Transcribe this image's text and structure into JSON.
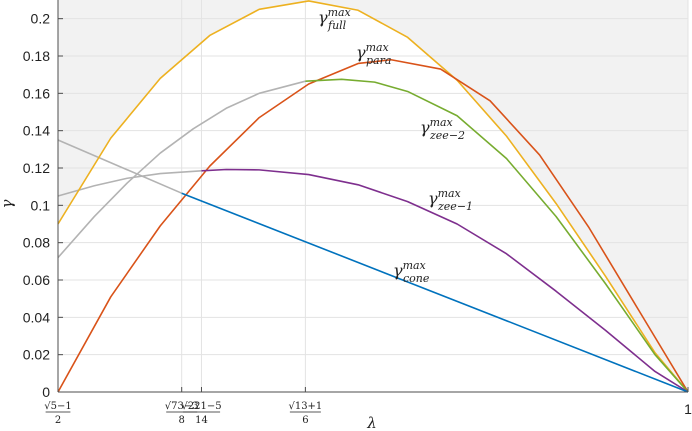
{
  "chart_data": {
    "type": "line",
    "xlabel": "λ",
    "ylabel": "γ",
    "xlim": [
      0.618,
      1.0
    ],
    "ylim": [
      0,
      0.21
    ],
    "grid": true,
    "shaded_region": "outside shaded gray region above the γ_full^max curve",
    "y_ticks": [
      "0",
      "0.02",
      "0.04",
      "0.06",
      "0.08",
      "0.1",
      "0.12",
      "0.14",
      "0.16",
      "0.18",
      "0.2"
    ],
    "x_ticks": [
      {
        "value": 0.618,
        "num": "√5−1",
        "den": "2"
      },
      {
        "value": 0.693,
        "num": "√73−3",
        "den": "8"
      },
      {
        "value": 0.705,
        "num": "√221−5",
        "den": "14"
      },
      {
        "value": 0.768,
        "num": "√13+1",
        "den": "6"
      },
      {
        "value": 1.0,
        "label": "1"
      }
    ],
    "series": [
      {
        "name": "γ_full^max",
        "label_base": "γ",
        "label_sup": "max",
        "label_sub": "full",
        "color": "#EDB120",
        "x": [
          0.618,
          0.65,
          0.68,
          0.71,
          0.74,
          0.77,
          0.8,
          0.83,
          0.86,
          0.89,
          0.92,
          0.95,
          0.98,
          1.0
        ],
        "y": [
          0.09,
          0.136,
          0.168,
          0.191,
          0.205,
          0.2095,
          0.2045,
          0.19,
          0.167,
          0.137,
          0.101,
          0.062,
          0.021,
          0.0
        ]
      },
      {
        "name": "γ_para^max",
        "label_base": "γ",
        "label_sup": "max",
        "label_sub": "para",
        "color": "#D95319",
        "x": [
          0.618,
          0.65,
          0.68,
          0.71,
          0.74,
          0.77,
          0.8,
          0.82,
          0.85,
          0.88,
          0.91,
          0.94,
          0.97,
          1.0
        ],
        "y": [
          0.0,
          0.051,
          0.089,
          0.121,
          0.147,
          0.165,
          0.176,
          0.178,
          0.173,
          0.156,
          0.127,
          0.088,
          0.044,
          0.0
        ]
      },
      {
        "name": "γ_zee-2^max",
        "label_base": "γ",
        "label_sup": "max",
        "label_sub": "zee−2",
        "color": "#77AC30",
        "x": [
          0.768,
          0.79,
          0.81,
          0.83,
          0.86,
          0.89,
          0.92,
          0.95,
          0.98,
          1.0
        ],
        "y": [
          0.1665,
          0.1675,
          0.166,
          0.161,
          0.148,
          0.125,
          0.094,
          0.058,
          0.02,
          0.0
        ]
      },
      {
        "name": "γ_zee-1^max",
        "label_base": "γ",
        "label_sup": "max",
        "label_sub": "zee−1",
        "color": "#7E2F8E",
        "x": [
          0.705,
          0.72,
          0.74,
          0.77,
          0.8,
          0.83,
          0.86,
          0.89,
          0.92,
          0.95,
          0.98,
          1.0
        ],
        "y": [
          0.1185,
          0.1192,
          0.119,
          0.1165,
          0.111,
          0.102,
          0.09,
          0.074,
          0.054,
          0.033,
          0.011,
          0.0
        ]
      },
      {
        "name": "γ_cone^max",
        "label_base": "γ",
        "label_sup": "max",
        "label_sub": "cone",
        "color": "#0072BD",
        "x": [
          0.693,
          1.0
        ],
        "y": [
          0.1065,
          0.0
        ]
      },
      {
        "name": "",
        "color": "#b3b3b3",
        "x": [
          0.618,
          0.693
        ],
        "y": [
          0.135,
          0.1065
        ]
      },
      {
        "name": "",
        "color": "#b3b3b3",
        "x": [
          0.618,
          0.64,
          0.66,
          0.68,
          0.705
        ],
        "y": [
          0.105,
          0.1105,
          0.1145,
          0.117,
          0.1185
        ]
      },
      {
        "name": "",
        "color": "#b3b3b3",
        "x": [
          0.618,
          0.64,
          0.66,
          0.68,
          0.7,
          0.72,
          0.74,
          0.768
        ],
        "y": [
          0.072,
          0.094,
          0.112,
          0.128,
          0.141,
          0.152,
          0.16,
          0.1665
        ]
      }
    ],
    "labels_text": {
      "full": {
        "sub": "full"
      },
      "para": {
        "sub": "para"
      },
      "zee2": {
        "sub": "zee−2"
      },
      "zee1": {
        "sub": "zee−1"
      },
      "cone": {
        "sub": "cone"
      }
    }
  }
}
